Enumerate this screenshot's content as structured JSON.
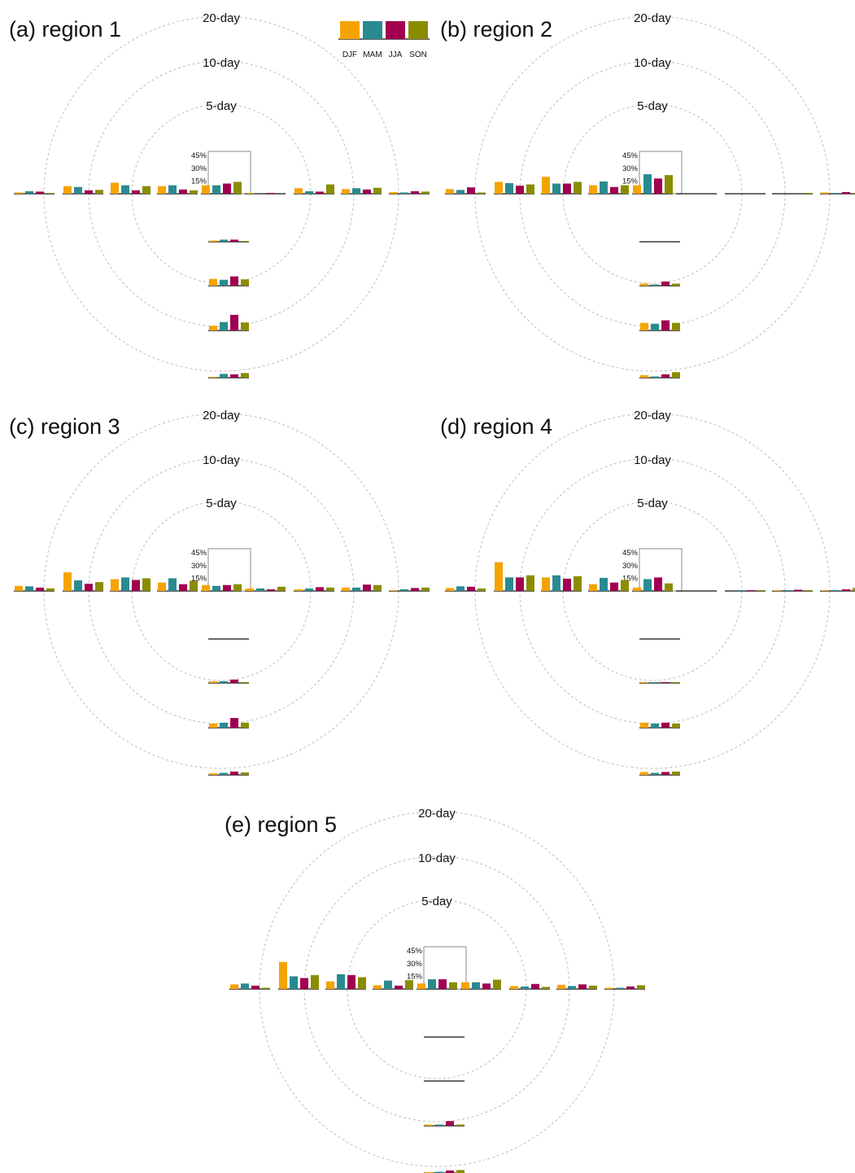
{
  "colors": {
    "DJF": "#f5a300",
    "MAM": "#2a8a90",
    "JJA": "#a0004f",
    "SON": "#8a8c00"
  },
  "legend": {
    "items": [
      "DJF",
      "MAM",
      "JJA",
      "SON"
    ]
  },
  "rings": [
    "5-day",
    "10-day",
    "20-day"
  ],
  "chart_data": [
    {
      "type": "bar",
      "title": "(a) region 1",
      "series_names": [
        "DJF",
        "MAM",
        "JJA",
        "SON"
      ],
      "inset_ticks": [
        "15%",
        "30%",
        "45%"
      ],
      "ylim": [
        0,
        50
      ],
      "row": [
        [
          1.5,
          3,
          2.5,
          0.5
        ],
        [
          9,
          8,
          4,
          4.5
        ],
        [
          13,
          10,
          4,
          9
        ],
        [
          9,
          10,
          5,
          4
        ],
        [
          10,
          10,
          12,
          14
        ],
        [
          1,
          0,
          0.5,
          0
        ],
        [
          6.5,
          3,
          2.5,
          11
        ],
        [
          5.5,
          6.5,
          5,
          7
        ],
        [
          2,
          1.5,
          3,
          2.5
        ]
      ],
      "col": [
        [
          1.5,
          2.5,
          2.5,
          0.5
        ],
        [
          8,
          7,
          11,
          7.5
        ],
        [
          5.5,
          10,
          18.5,
          9.5
        ],
        [
          0.5,
          4.5,
          4,
          5.5
        ]
      ]
    },
    {
      "type": "bar",
      "title": "(b) region 2",
      "series_names": [
        "DJF",
        "MAM",
        "JJA",
        "SON"
      ],
      "inset_ticks": [
        "15%",
        "30%",
        "45%"
      ],
      "ylim": [
        0,
        50
      ],
      "row": [
        [
          5.5,
          4.5,
          7.5,
          1.5
        ],
        [
          14,
          12.5,
          9.5,
          11
        ],
        [
          20,
          12,
          12,
          14
        ],
        [
          10,
          14.5,
          8,
          10
        ],
        [
          10,
          23,
          18,
          22
        ],
        [
          0,
          0,
          0,
          0
        ],
        [
          0,
          0,
          0,
          0
        ],
        [
          0,
          0,
          0,
          1
        ],
        [
          1.5,
          1,
          2,
          1
        ]
      ],
      "col": [
        [
          0,
          0,
          0,
          0
        ],
        [
          2.5,
          1.5,
          5,
          2.5
        ],
        [
          9,
          8,
          12,
          9
        ],
        [
          3,
          1.5,
          4,
          6.5
        ]
      ]
    },
    {
      "type": "bar",
      "title": "(c) region 3",
      "series_names": [
        "DJF",
        "MAM",
        "JJA",
        "SON"
      ],
      "inset_ticks": [
        "15%",
        "30%",
        "45%"
      ],
      "ylim": [
        0,
        50
      ],
      "row": [
        [
          6,
          5.5,
          4,
          3
        ],
        [
          22,
          12.5,
          8.5,
          10.5
        ],
        [
          14,
          16,
          13,
          15
        ],
        [
          10,
          15,
          8,
          12
        ],
        [
          7,
          6,
          7,
          8
        ],
        [
          3,
          3,
          2,
          5
        ],
        [
          2,
          3,
          4.5,
          4
        ],
        [
          4,
          4,
          7.5,
          7
        ],
        [
          0.5,
          2,
          3.5,
          4
        ]
      ],
      "col": [
        [
          0,
          0,
          0,
          0
        ],
        [
          2,
          2,
          4,
          1
        ],
        [
          5,
          6,
          11.5,
          6
        ],
        [
          2,
          2.5,
          4,
          3
        ]
      ]
    },
    {
      "type": "bar",
      "title": "(d) region 4",
      "series_names": [
        "DJF",
        "MAM",
        "JJA",
        "SON"
      ],
      "inset_ticks": [
        "15%",
        "30%",
        "45%"
      ],
      "ylim": [
        0,
        50
      ],
      "row": [
        [
          3.5,
          5.5,
          5,
          3
        ],
        [
          34,
          16,
          16,
          18.5
        ],
        [
          16,
          18.5,
          14.5,
          17.5
        ],
        [
          8,
          15.5,
          10,
          13
        ],
        [
          4,
          14,
          16,
          9
        ],
        [
          0,
          0,
          0,
          0
        ],
        [
          0,
          0.5,
          0.5,
          0.5
        ],
        [
          0.5,
          1,
          1.5,
          1
        ],
        [
          0.5,
          1,
          2,
          3.5
        ]
      ],
      "col": [
        [
          0,
          0,
          0,
          0
        ],
        [
          0.5,
          0.5,
          1,
          0.5
        ],
        [
          6,
          5,
          6,
          5
        ],
        [
          3.5,
          2.5,
          3.5,
          4
        ]
      ]
    },
    {
      "type": "bar",
      "title": "(e) region 5",
      "series_names": [
        "DJF",
        "MAM",
        "JJA",
        "SON"
      ],
      "inset_ticks": [
        "15%",
        "30%",
        "45%"
      ],
      "ylim": [
        0,
        50
      ],
      "row": [
        [
          5.5,
          6.5,
          4,
          1.5
        ],
        [
          32,
          15,
          13,
          16.5
        ],
        [
          9,
          17.5,
          16.5,
          14
        ],
        [
          4.5,
          10,
          4,
          10.5
        ],
        [
          6.5,
          11.5,
          11.5,
          8
        ],
        [
          8,
          8,
          6.5,
          11
        ],
        [
          3.5,
          3,
          6,
          2.5
        ],
        [
          5,
          3.5,
          5.5,
          4
        ],
        [
          1.5,
          1.5,
          3,
          4.5
        ]
      ],
      "col": [
        [
          0,
          0,
          0,
          0
        ],
        [
          0,
          0,
          0,
          0
        ],
        [
          1.5,
          1.5,
          5.5,
          1.5
        ],
        [
          1,
          1.5,
          3,
          3.5
        ]
      ]
    }
  ]
}
